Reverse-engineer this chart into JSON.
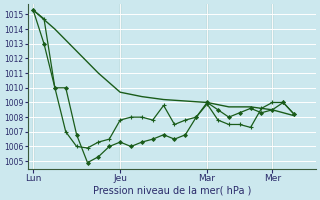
{
  "xlabel": "Pression niveau de la mer( hPa )",
  "background_color": "#cce8ee",
  "grid_color": "#ffffff",
  "line_color": "#1a5c1a",
  "ylim": [
    1004.5,
    1015.7
  ],
  "yticks": [
    1005,
    1006,
    1007,
    1008,
    1009,
    1010,
    1011,
    1012,
    1013,
    1014,
    1015
  ],
  "xtick_labels": [
    "Lun",
    "Jeu",
    "Mar",
    "Mer"
  ],
  "xtick_positions": [
    0,
    16,
    32,
    44
  ],
  "vline_positions": [
    0,
    16,
    32,
    44
  ],
  "xlim": [
    -1,
    52
  ],
  "smooth_x": [
    0,
    4,
    8,
    12,
    16,
    20,
    24,
    28,
    32,
    36,
    40,
    44,
    48
  ],
  "smooth_y": [
    1015.3,
    1014.0,
    1012.5,
    1011.0,
    1009.7,
    1009.4,
    1009.2,
    1009.1,
    1009.0,
    1008.7,
    1008.7,
    1008.5,
    1008.1
  ],
  "cross_x": [
    0,
    2,
    4,
    6,
    8,
    10,
    12,
    14,
    16,
    18,
    20,
    22,
    24,
    26,
    28,
    30,
    32,
    34,
    36,
    38,
    40,
    42,
    44,
    46,
    48
  ],
  "cross_y": [
    1015.3,
    1014.7,
    1010.0,
    1007.0,
    1006.0,
    1005.9,
    1006.3,
    1006.5,
    1007.8,
    1008.0,
    1008.0,
    1007.8,
    1008.8,
    1007.5,
    1007.8,
    1008.0,
    1008.9,
    1007.8,
    1007.5,
    1007.5,
    1007.3,
    1008.6,
    1009.0,
    1009.0,
    1008.2
  ],
  "diamond_x": [
    0,
    2,
    4,
    6,
    8,
    10,
    12,
    14,
    16,
    18,
    20,
    22,
    24,
    26,
    28,
    30,
    32,
    34,
    36,
    38,
    40,
    42,
    44,
    46,
    48
  ],
  "diamond_y": [
    1015.3,
    1013.0,
    1010.0,
    1010.0,
    1006.8,
    1004.9,
    1005.3,
    1006.0,
    1006.3,
    1006.0,
    1006.3,
    1006.5,
    1006.8,
    1006.5,
    1006.8,
    1008.0,
    1009.0,
    1008.5,
    1008.0,
    1008.3,
    1008.6,
    1008.3,
    1008.5,
    1009.0,
    1008.2
  ]
}
